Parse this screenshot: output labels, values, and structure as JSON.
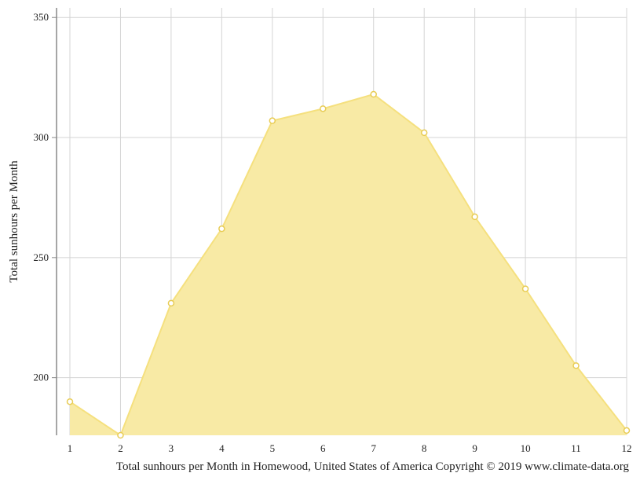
{
  "chart_data": {
    "type": "area",
    "x": [
      1,
      2,
      3,
      4,
      5,
      6,
      7,
      8,
      9,
      10,
      11,
      12
    ],
    "values": [
      190,
      176,
      231,
      262,
      307,
      312,
      318,
      302,
      267,
      237,
      205,
      178
    ],
    "ylabel": "Total sunhours per Month",
    "caption": "Total sunhours per Month in Homewood, United States of America Copyright © 2019 www.climate-data.org",
    "y_ticks": [
      200,
      250,
      300,
      350
    ],
    "x_ticks": [
      1,
      2,
      3,
      4,
      5,
      6,
      7,
      8,
      9,
      10,
      11,
      12
    ],
    "ylim": [
      176,
      354
    ],
    "grid": true,
    "colors": {
      "fill": "#f8eaa5",
      "line": "#f5e07e",
      "marker_fill": "#ffffff",
      "marker_stroke": "#e8cc55",
      "grid": "#d4d4d4",
      "axis": "#888888"
    }
  }
}
